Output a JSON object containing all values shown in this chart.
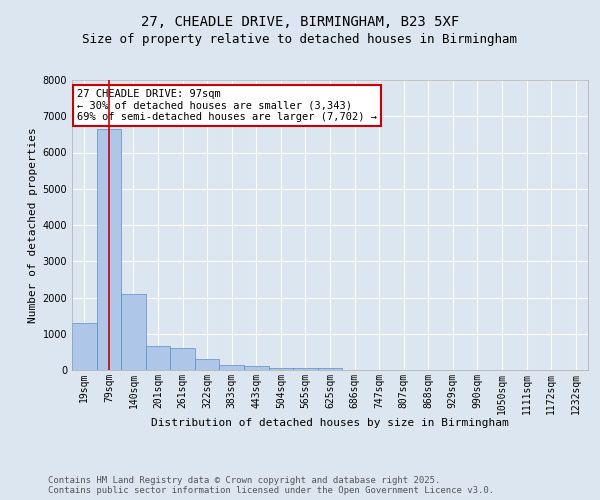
{
  "title_line1": "27, CHEADLE DRIVE, BIRMINGHAM, B23 5XF",
  "title_line2": "Size of property relative to detached houses in Birmingham",
  "xlabel": "Distribution of detached houses by size in Birmingham",
  "ylabel": "Number of detached properties",
  "categories": [
    "19sqm",
    "79sqm",
    "140sqm",
    "201sqm",
    "261sqm",
    "322sqm",
    "383sqm",
    "443sqm",
    "504sqm",
    "565sqm",
    "625sqm",
    "686sqm",
    "747sqm",
    "807sqm",
    "868sqm",
    "929sqm",
    "990sqm",
    "1050sqm",
    "1111sqm",
    "1172sqm",
    "1232sqm"
  ],
  "values": [
    1310,
    6640,
    2090,
    660,
    620,
    300,
    140,
    100,
    50,
    50,
    50,
    0,
    0,
    0,
    0,
    0,
    0,
    0,
    0,
    0,
    0
  ],
  "bar_color": "#aec6e8",
  "bar_edge_color": "#5a8fc3",
  "vline_x": 1,
  "vline_color": "#cc0000",
  "ylim": [
    0,
    8000
  ],
  "annotation_title": "27 CHEADLE DRIVE: 97sqm",
  "annotation_line1": "← 30% of detached houses are smaller (3,343)",
  "annotation_line2": "69% of semi-detached houses are larger (7,702) →",
  "annotation_box_color": "#cc0000",
  "annotation_fill": "#ffffff",
  "footer_line1": "Contains HM Land Registry data © Crown copyright and database right 2025.",
  "footer_line2": "Contains public sector information licensed under the Open Government Licence v3.0.",
  "background_color": "#dce6f0",
  "plot_bg_color": "#dce6f0",
  "grid_color": "#ffffff",
  "title_fontsize": 10,
  "subtitle_fontsize": 9,
  "axis_label_fontsize": 8,
  "tick_fontsize": 7,
  "footer_fontsize": 6.5,
  "annotation_fontsize": 7.5
}
